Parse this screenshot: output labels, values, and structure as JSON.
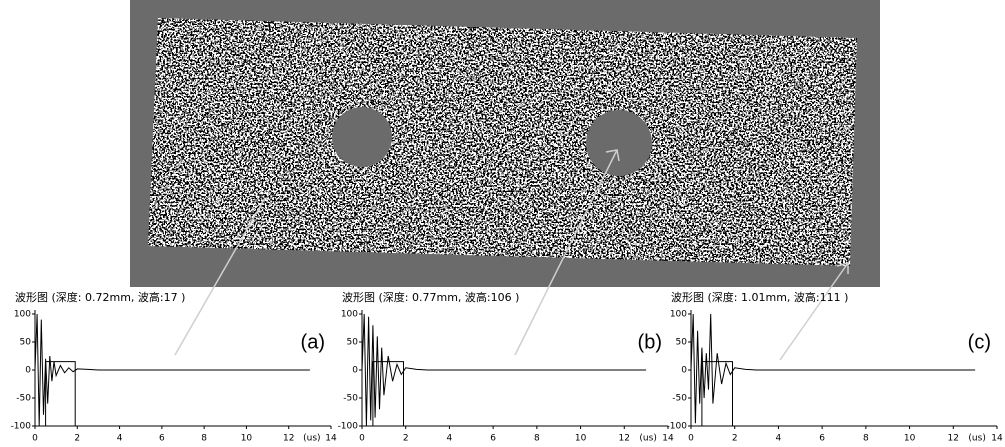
{
  "chart_data": [
    {
      "type": "line",
      "title": "波形图 (深度: 0.72mm, 波高:17 )",
      "panel_label": "(a)",
      "x_label": "(us)",
      "xlim": [
        0,
        14
      ],
      "ylim": [
        -100,
        100
      ],
      "xticks": [
        0,
        2,
        4,
        6,
        8,
        10,
        12,
        14
      ],
      "yticks": [
        100,
        50,
        0,
        -50,
        -100
      ],
      "series": [
        {
          "color": "#000000",
          "x": [
            0,
            0.1,
            0.2,
            0.3,
            0.4,
            0.5,
            0.6,
            0.7,
            0.8,
            0.9,
            1.0,
            1.2,
            1.4,
            1.6,
            1.8,
            2.0,
            2.5,
            3,
            4,
            13
          ],
          "values": [
            0,
            100,
            -100,
            90,
            -80,
            20,
            -60,
            25,
            -20,
            15,
            -10,
            8,
            -5,
            4,
            -3,
            2,
            1,
            0,
            0,
            0
          ]
        },
        {
          "color": "#000000",
          "x": [
            0.5,
            0.5,
            1.9,
            1.9
          ],
          "values": [
            -100,
            15,
            15,
            -100
          ]
        }
      ]
    },
    {
      "type": "line",
      "title": "波形图 (深度: 0.77mm, 波高:106 )",
      "panel_label": "(b)",
      "x_label": "(us)",
      "xlim": [
        0,
        14
      ],
      "ylim": [
        -100,
        100
      ],
      "xticks": [
        0,
        2,
        4,
        6,
        8,
        10,
        12,
        14
      ],
      "yticks": [
        100,
        50,
        0,
        -50,
        -100
      ],
      "series": [
        {
          "color": "#000000",
          "x": [
            0,
            0.1,
            0.2,
            0.3,
            0.4,
            0.5,
            0.6,
            0.7,
            0.8,
            0.9,
            1.0,
            1.2,
            1.4,
            1.6,
            1.8,
            2.0,
            2.5,
            3,
            4,
            13
          ],
          "values": [
            0,
            100,
            -100,
            95,
            -90,
            80,
            -85,
            60,
            -70,
            40,
            -45,
            25,
            -20,
            10,
            -8,
            4,
            1,
            0,
            0,
            0
          ]
        },
        {
          "color": "#000000",
          "x": [
            0.5,
            0.5,
            1.9,
            1.9
          ],
          "values": [
            -100,
            15,
            15,
            -100
          ]
        }
      ]
    },
    {
      "type": "line",
      "title": "波形图 (深度: 1.01mm, 波高:111 )",
      "panel_label": "(c)",
      "x_label": "(us)",
      "xlim": [
        0,
        14
      ],
      "ylim": [
        -100,
        100
      ],
      "xticks": [
        0,
        2,
        4,
        6,
        8,
        10,
        12,
        14
      ],
      "yticks": [
        100,
        50,
        0,
        -50,
        -100
      ],
      "series": [
        {
          "color": "#000000",
          "x": [
            0,
            0.1,
            0.2,
            0.3,
            0.4,
            0.5,
            0.6,
            0.7,
            0.8,
            0.9,
            1.0,
            1.2,
            1.4,
            1.6,
            1.8,
            2.0,
            2.5,
            3,
            4,
            13
          ],
          "values": [
            0,
            100,
            -95,
            70,
            -60,
            40,
            -50,
            30,
            -35,
            100,
            -60,
            30,
            -25,
            12,
            -8,
            4,
            1,
            0,
            0,
            0
          ]
        },
        {
          "color": "#000000",
          "x": [
            0.5,
            0.5,
            1.9,
            1.9
          ],
          "values": [
            -100,
            15,
            15,
            -100
          ]
        }
      ]
    }
  ]
}
